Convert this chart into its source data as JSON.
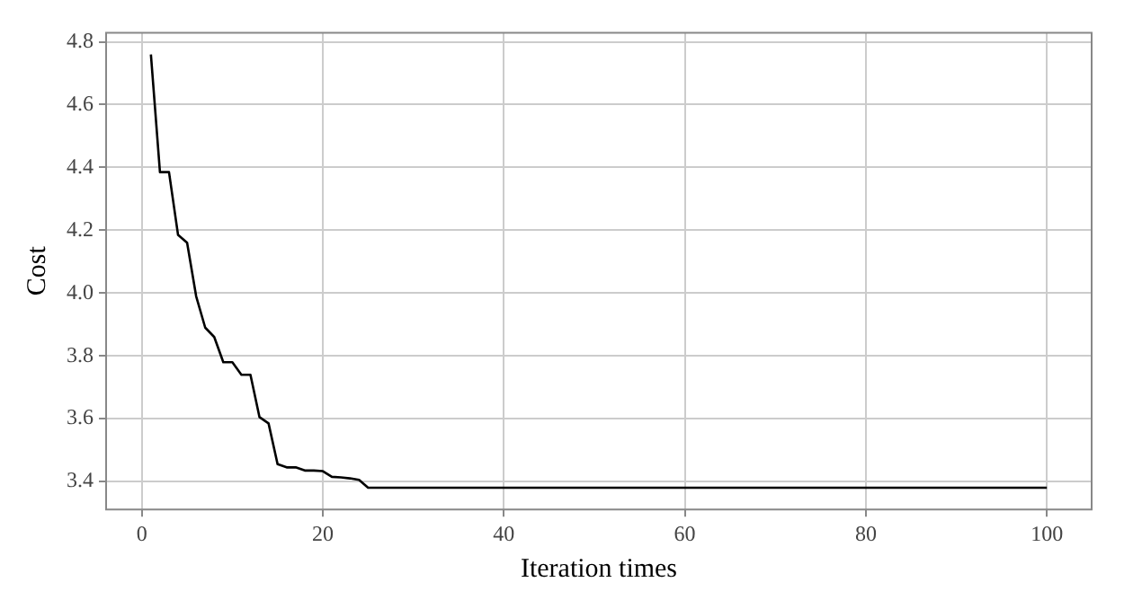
{
  "chart_data": {
    "type": "line",
    "xlabel": "Iteration times",
    "ylabel": "Cost",
    "x": [
      1,
      2,
      3,
      4,
      5,
      6,
      7,
      8,
      9,
      10,
      11,
      12,
      13,
      14,
      15,
      16,
      17,
      18,
      19,
      20,
      21,
      22,
      23,
      24,
      25,
      100
    ],
    "series": [
      {
        "color": "#000000",
        "values": [
          4.76,
          4.385,
          4.385,
          4.185,
          4.16,
          3.99,
          3.89,
          3.86,
          3.78,
          3.78,
          3.74,
          3.74,
          3.605,
          3.585,
          3.455,
          3.445,
          3.445,
          3.435,
          3.435,
          3.433,
          3.415,
          3.413,
          3.41,
          3.405,
          3.38,
          3.38
        ]
      }
    ],
    "xlim": [
      -3.95,
      104.95
    ],
    "xticks": [
      0,
      20,
      40,
      60,
      80,
      100
    ],
    "ylim": [
      3.311,
      4.829
    ],
    "yticks": [
      3.4,
      3.6,
      3.8,
      {
        "value": 4,
        "label": "4.0"
      },
      4.2,
      4.4,
      4.6,
      4.8
    ],
    "grid": true,
    "legend": false,
    "marker": "none",
    "line_style": "solid"
  }
}
